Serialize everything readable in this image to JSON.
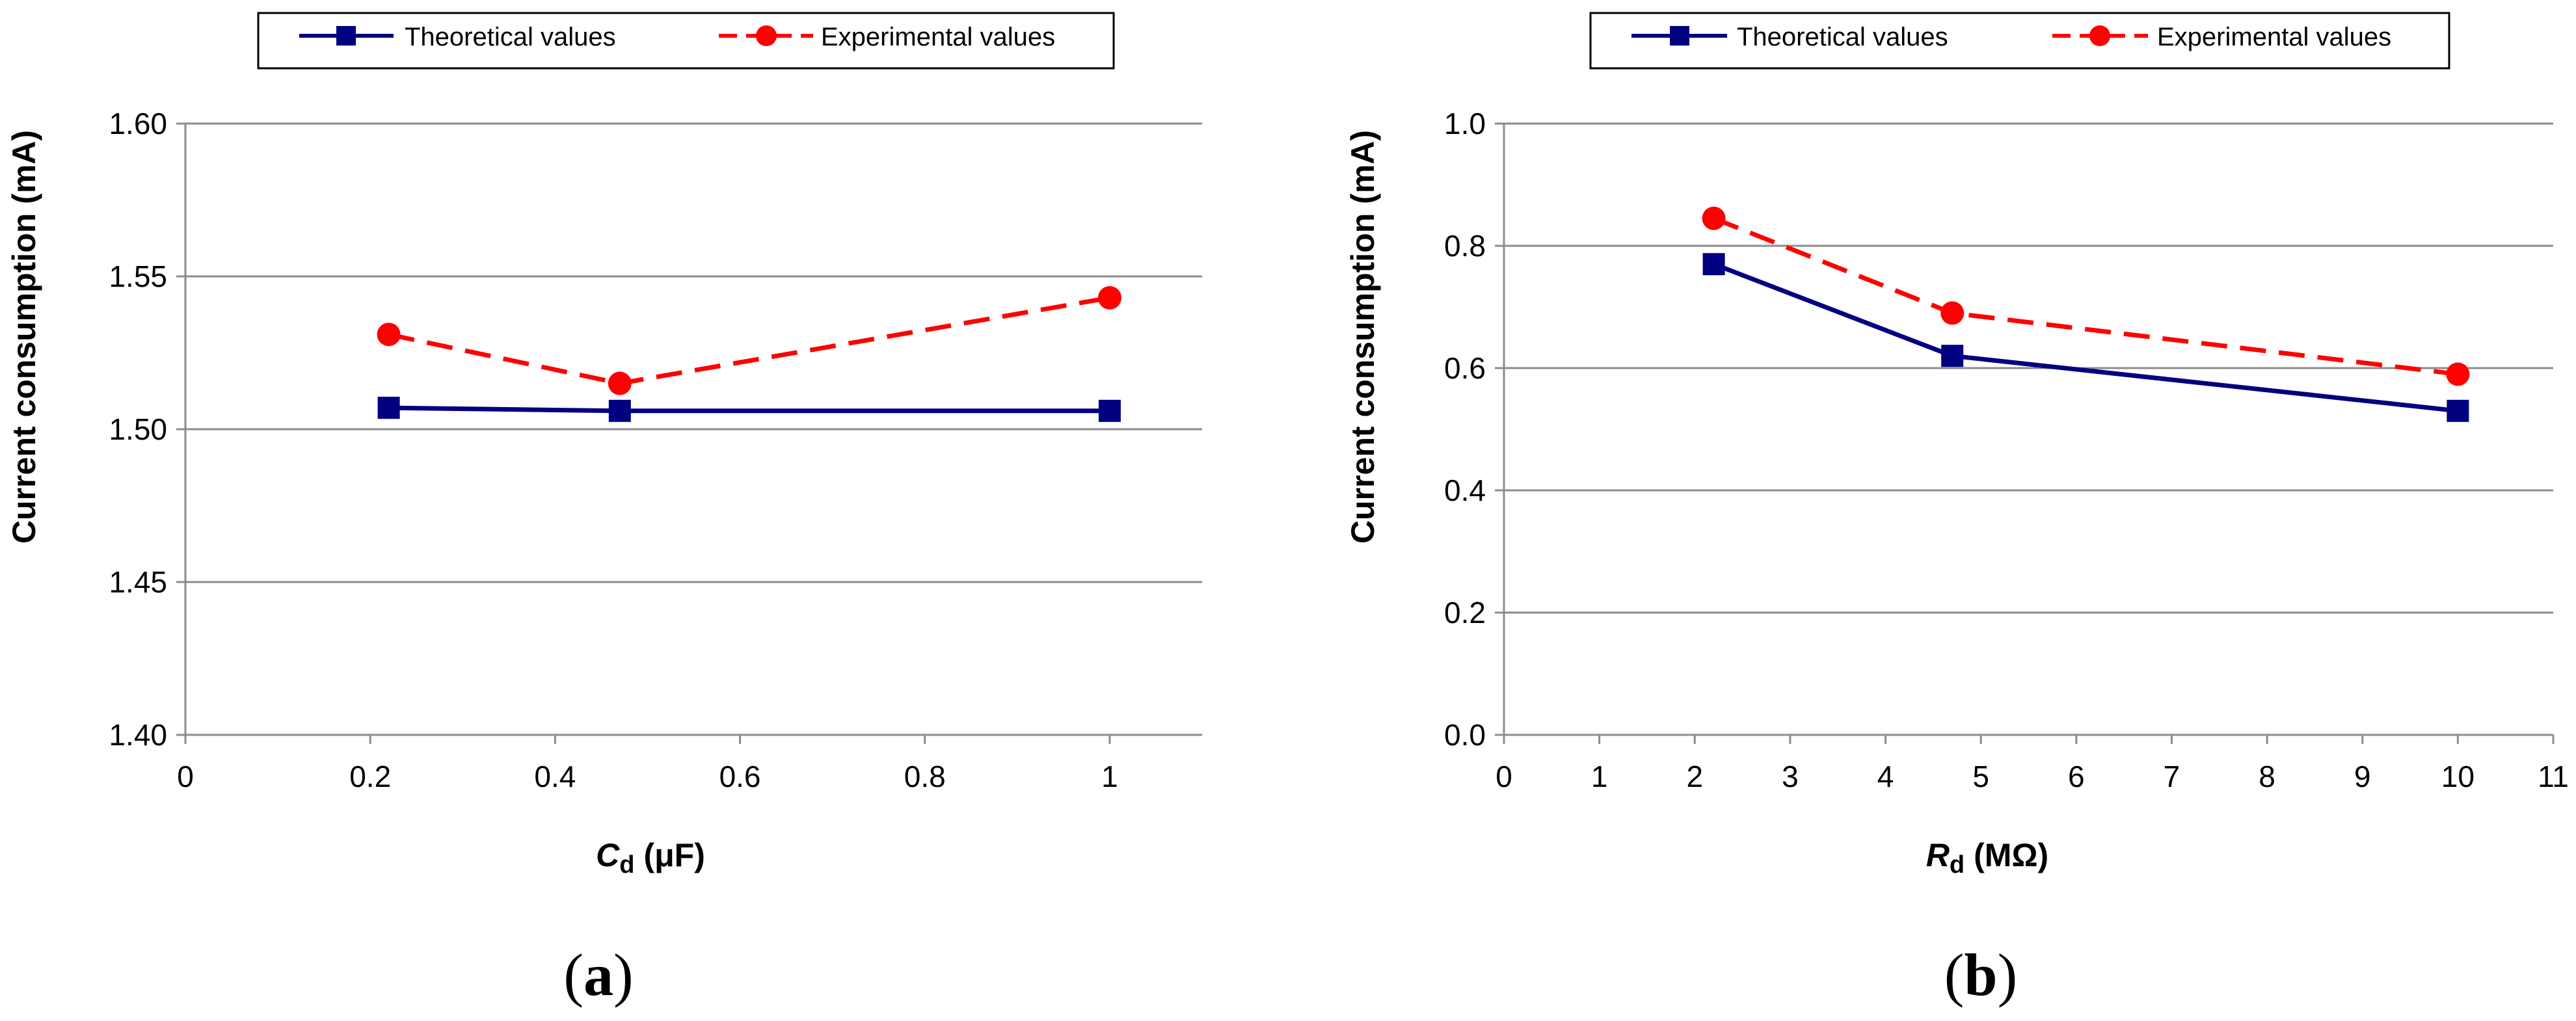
{
  "chart_data": [
    {
      "type": "line",
      "panel_label": "(a)",
      "panel_letter": "a",
      "xlabel_symbol": "C",
      "xlabel_sub": "d",
      "xlabel_unit": "(μF)",
      "ylabel": "Current consumption (mA)",
      "xlim": [
        0,
        1.1
      ],
      "ylim": [
        1.4,
        1.6
      ],
      "x_ticks": [
        "0",
        "0.2",
        "0.4",
        "0.6",
        "0.8",
        "1"
      ],
      "y_ticks": [
        "1.40",
        "1.45",
        "1.50",
        "1.55",
        "1.60"
      ],
      "grid": true,
      "legend_position": "top",
      "series": [
        {
          "name": "Theoretical values",
          "color": "#000080",
          "style": "solid",
          "marker": "square",
          "x": [
            0.22,
            0.47,
            1.0
          ],
          "y": [
            1.507,
            1.506,
            1.506
          ]
        },
        {
          "name": "Experimental values",
          "color": "#FF0000",
          "style": "dashed",
          "marker": "circle",
          "x": [
            0.22,
            0.47,
            1.0
          ],
          "y": [
            1.531,
            1.515,
            1.543
          ]
        }
      ]
    },
    {
      "type": "line",
      "panel_label": "(b)",
      "panel_letter": "b",
      "xlabel_symbol": "R",
      "xlabel_sub": "d",
      "xlabel_unit": "(MΩ)",
      "ylabel": "Current consumption (mA)",
      "xlim": [
        0,
        11
      ],
      "ylim": [
        0.0,
        1.0
      ],
      "x_ticks": [
        "0",
        "1",
        "2",
        "3",
        "4",
        "5",
        "6",
        "7",
        "8",
        "9",
        "10",
        "11"
      ],
      "y_ticks": [
        "0.0",
        "0.2",
        "0.4",
        "0.6",
        "0.8",
        "1.0"
      ],
      "grid": true,
      "legend_position": "top",
      "series": [
        {
          "name": "Theoretical values",
          "color": "#000080",
          "style": "solid",
          "marker": "square",
          "x": [
            2.2,
            4.7,
            10
          ],
          "y": [
            0.77,
            0.62,
            0.53
          ]
        },
        {
          "name": "Experimental values",
          "color": "#FF0000",
          "style": "dashed",
          "marker": "circle",
          "x": [
            2.2,
            4.7,
            10
          ],
          "y": [
            0.845,
            0.69,
            0.59
          ]
        }
      ]
    }
  ]
}
